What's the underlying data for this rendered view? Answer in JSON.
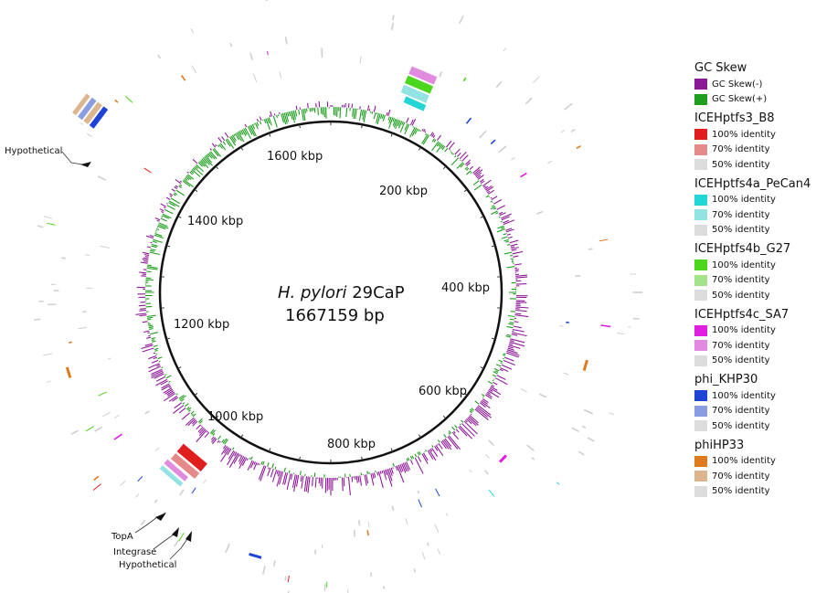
{
  "diagram": {
    "center_title_italic": "H. pylori",
    "center_title_rest": " 29CaP",
    "genome_size": "1667159 bp",
    "kbp_labels": [
      "1600 kbp",
      "200 kbp",
      "1400 kbp",
      "400 kbp",
      "1200 kbp",
      "600 kbp",
      "1000 kbp",
      "800 kbp"
    ],
    "gene_labels": [
      "Hypothetical",
      "TopA",
      "Integrase",
      "Hypothetical"
    ]
  },
  "colors": {
    "skew_neg": "#8e1c99",
    "skew_pos": "#1e9e1e",
    "backbone": "#111111"
  },
  "legend": [
    {
      "title": "GC Skew",
      "items": [
        {
          "label": "GC Skew(-)",
          "color": "#8b1a96"
        },
        {
          "label": "GC Skew(+)",
          "color": "#1e9e1e"
        }
      ]
    },
    {
      "title": "ICEHptfs3_B8",
      "items": [
        {
          "label": "100% identity",
          "color": "#e01e1e"
        },
        {
          "label": "70% identity",
          "color": "#e58a8a"
        },
        {
          "label": "50% identity",
          "color": "#dcdcdc"
        }
      ]
    },
    {
      "title": "ICEHptfs4a_PeCan4",
      "items": [
        {
          "label": "100% identity",
          "color": "#22d6d6"
        },
        {
          "label": "70% identity",
          "color": "#93e3e3"
        },
        {
          "label": "50% identity",
          "color": "#dcdcdc"
        }
      ]
    },
    {
      "title": "ICEHptfs4b_G27",
      "items": [
        {
          "label": "100% identity",
          "color": "#4cd61e"
        },
        {
          "label": "70% identity",
          "color": "#a3e38a"
        },
        {
          "label": "50% identity",
          "color": "#dcdcdc"
        }
      ]
    },
    {
      "title": "ICEHptfs4c_SA7",
      "items": [
        {
          "label": "100% identity",
          "color": "#e01ee0"
        },
        {
          "label": "70% identity",
          "color": "#e08ae0"
        },
        {
          "label": "50% identity",
          "color": "#dcdcdc"
        }
      ]
    },
    {
      "title": "phi_KHP30",
      "items": [
        {
          "label": "100% identity",
          "color": "#1e44d6"
        },
        {
          "label": "70% identity",
          "color": "#8a9de0"
        },
        {
          "label": "50% identity",
          "color": "#dcdcdc"
        }
      ]
    },
    {
      "title": "phiHP33",
      "items": [
        {
          "label": "100% identity",
          "color": "#e07a1e"
        },
        {
          "label": "70% identity",
          "color": "#dcb48e"
        },
        {
          "label": "50% identity",
          "color": "#dcdcdc"
        }
      ]
    }
  ]
}
